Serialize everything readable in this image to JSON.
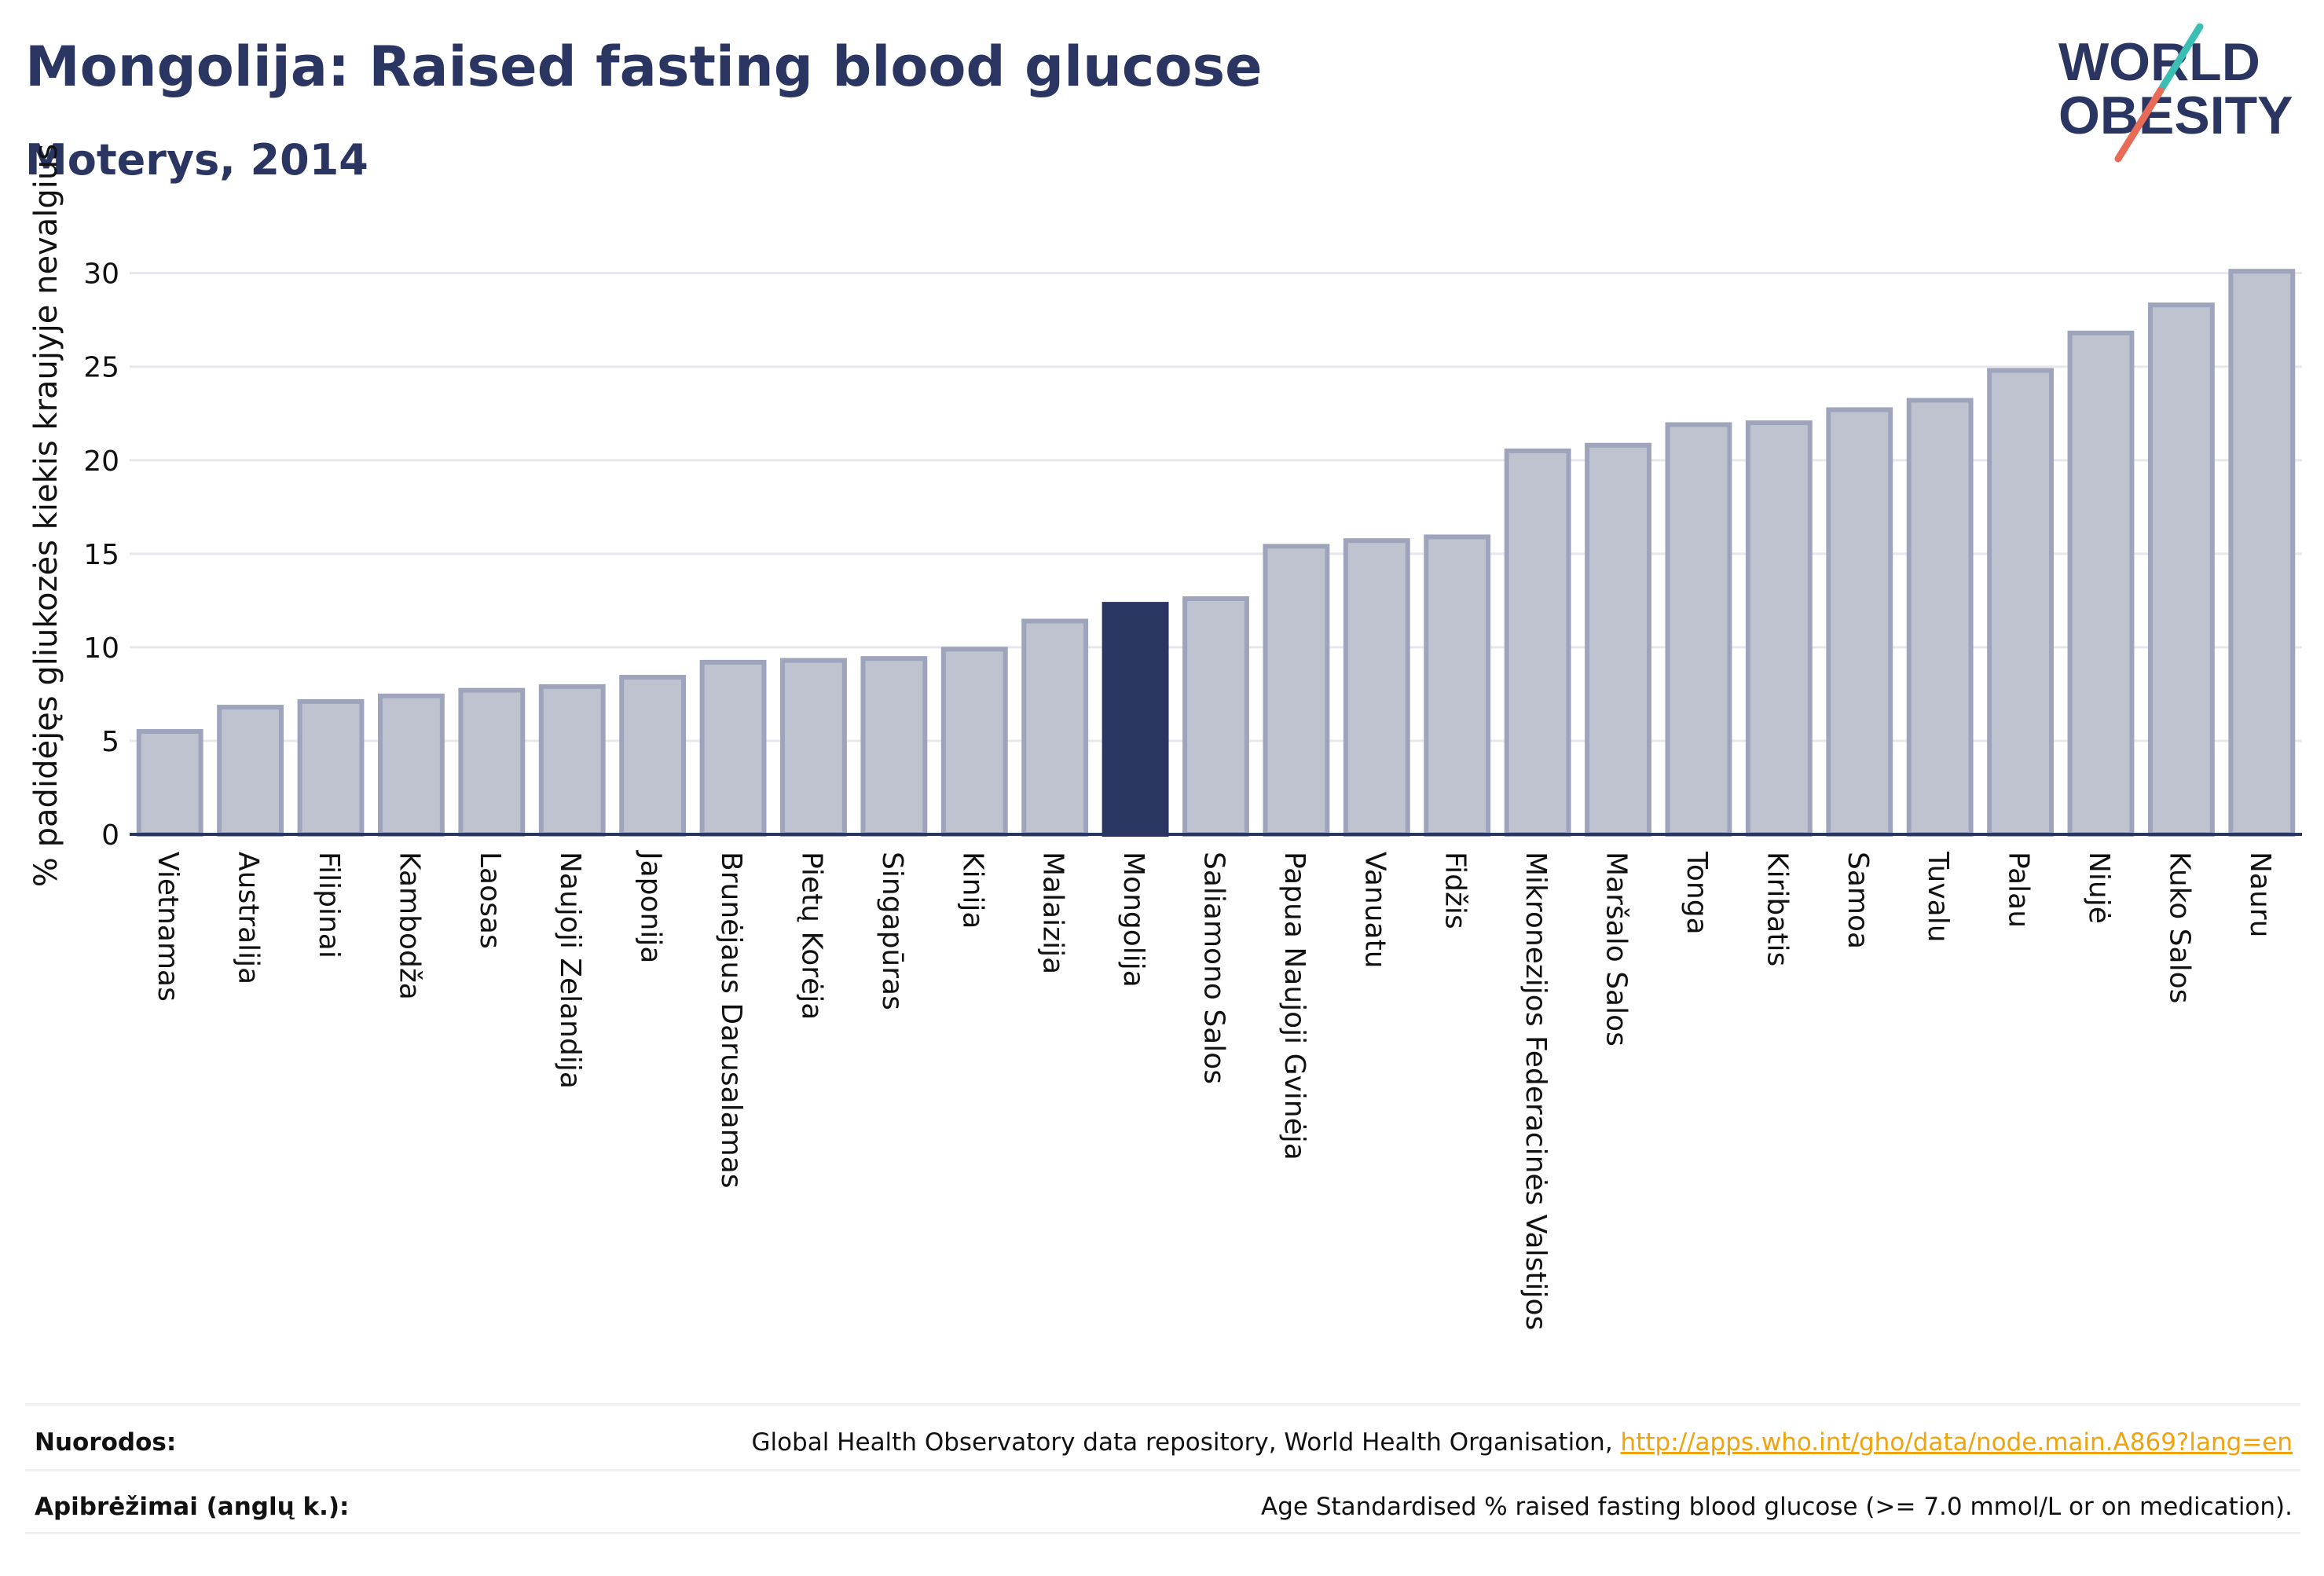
{
  "header": {
    "title": "Mongolija: Raised fasting blood glucose",
    "subtitle": "Moterys, 2014"
  },
  "logo": {
    "line1": "WORLD",
    "line2": "OBESITY"
  },
  "colors": {
    "bar": "#bfc3d0",
    "bar_stroke": "#9ea4bb",
    "highlight": "#2a3562",
    "grid": "#e6e8ee",
    "axis": "#2a3562",
    "logo_teal": "#3bbfb5",
    "logo_coral": "#e86b57",
    "link": "#f0a30a"
  },
  "chart_data": {
    "type": "bar",
    "ylabel": "% padidėjęs gliukozės kiekis kraujyje nevalgius",
    "ylim": [
      0,
      32
    ],
    "yticks": [
      0,
      5,
      10,
      15,
      20,
      25,
      30
    ],
    "grid": true,
    "highlight": "Mongolija",
    "categories": [
      "Vietnamas",
      "Australija",
      "Filipinai",
      "Kambodža",
      "Laosas",
      "Naujoji Zelandija",
      "Japonija",
      "Brunėjaus Darusalamas",
      "Pietų Korėja",
      "Singapūras",
      "Kinija",
      "Malaizija",
      "Mongolija",
      "Saliamono Salos",
      "Papua Naujoji Gvinėja",
      "Vanuatu",
      "Fidžis",
      "Mikronezijos Federacinės Valstijos",
      "Maršalo Salos",
      "Tonga",
      "Kiribatis",
      "Samoa",
      "Tuvalu",
      "Palau",
      "Niujė",
      "Kuko Salos",
      "Nauru"
    ],
    "values": [
      5.5,
      6.8,
      7.1,
      7.4,
      7.7,
      7.9,
      8.4,
      9.2,
      9.3,
      9.4,
      9.9,
      11.4,
      12.3,
      12.6,
      15.4,
      15.7,
      15.9,
      20.5,
      20.8,
      21.9,
      22.0,
      22.7,
      23.2,
      24.8,
      26.8,
      28.3,
      30.1
    ]
  },
  "footer": {
    "sources_label": "Nuorodos:",
    "sources_text": "Global Health Observatory data repository, World Health Organisation, ",
    "sources_link": "http://apps.who.int/gho/data/node.main.A869?lang=en",
    "definitions_label": "Apibrėžimai (anglų k.):",
    "definitions_text": "Age Standardised % raised fasting blood glucose (>= 7.0 mmol/L or on medication)."
  }
}
